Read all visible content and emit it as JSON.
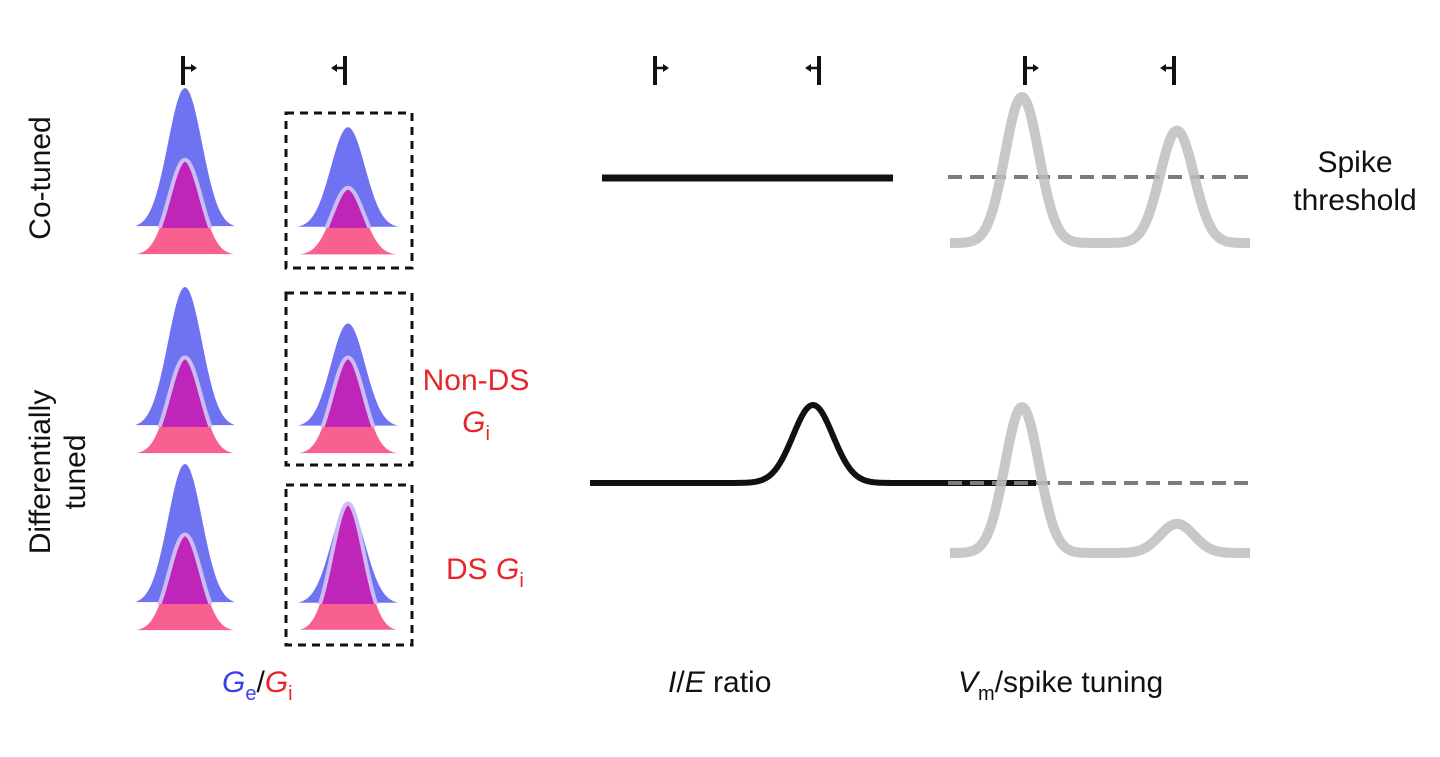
{
  "row_labels": {
    "co_tuned": "Co-tuned",
    "diff_line1": "Differentially",
    "diff_line2": "tuned"
  },
  "annotations": {
    "non_ds_line1": "Non-DS",
    "non_ds_g": "G",
    "non_ds_sub": "i",
    "ds_prefix": "DS ",
    "ds_g": "G",
    "ds_sub": "i",
    "spike_line1": "Spike",
    "spike_line2": "threshold"
  },
  "column_labels": {
    "ge": "G",
    "ge_sub": "e",
    "slash": "/",
    "gi": "G",
    "gi_sub": "i",
    "ie_i": "I",
    "ie_slash": "/",
    "ie_e": "E",
    "ie_rest": " ratio",
    "vm": "V",
    "vm_sub": "m",
    "vm_rest": "/spike tuning"
  },
  "colors": {
    "ge": "#6f73f2",
    "gi": "#f8608f",
    "overlap": "#c025b9",
    "gi_outline": "#cdbcf3",
    "label_red": "#e8262a",
    "label_blue": "#3a3ff0",
    "vm_curve": "#bcc0bc",
    "threshold": "#7a7d7b",
    "ie_line": "#111111"
  },
  "panels": {
    "co_tuned": {
      "pref_ge": 1.0,
      "pref_gi": 0.68,
      "null_ge": 0.72,
      "null_gi": 0.48,
      "ie_bump": 0,
      "vm_pref": 1.0,
      "vm_null": 0.77
    },
    "non_ds": {
      "pref_ge": 1.0,
      "pref_gi": 0.69,
      "null_ge": 0.74,
      "null_gi": 0.69
    },
    "ds": {
      "pref_ge": 1.0,
      "pref_gi": 0.69,
      "null_ge": 0.71,
      "null_gi": 0.91,
      "ie_bump": 1,
      "vm_pref": 1.0,
      "vm_null": 0.2
    }
  }
}
